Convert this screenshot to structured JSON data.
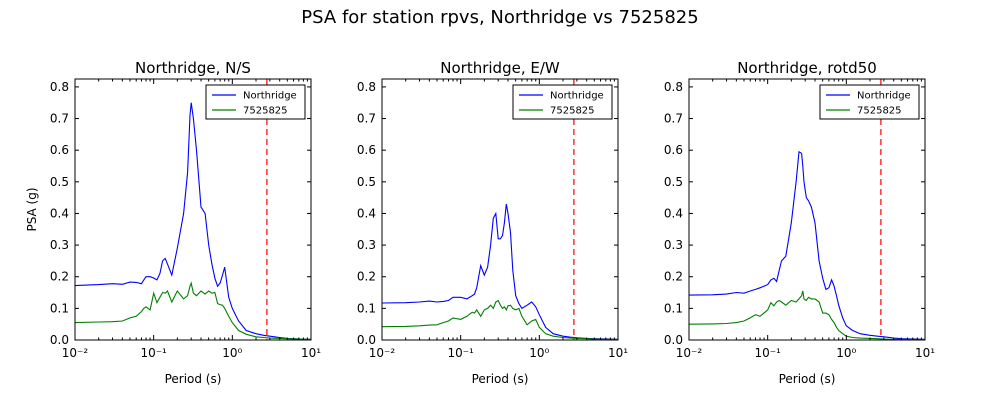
{
  "suptitle": "PSA for station rpvs, Northridge vs 7525825",
  "colors": {
    "series_northridge": "#0000ff",
    "series_7525825": "#008000",
    "marker_line": "#ff0000"
  },
  "chart_data": [
    {
      "type": "line",
      "title": "Northridge, N/S",
      "xlabel": "Period (s)",
      "ylabel": "PSA (g)",
      "xscale": "log",
      "xlim": [
        0.01,
        10
      ],
      "ylim": [
        0,
        0.825
      ],
      "xticks": [
        "10⁻²",
        "10⁻¹",
        "10⁰",
        "10¹"
      ],
      "yticks": [
        "0.0",
        "0.1",
        "0.2",
        "0.3",
        "0.4",
        "0.5",
        "0.6",
        "0.7",
        "0.8"
      ],
      "legend_position": "top-right",
      "marker_x": 2.75,
      "series": [
        {
          "name": "Northridge",
          "color": "#0000ff",
          "x": [
            0.01,
            0.02,
            0.03,
            0.04,
            0.05,
            0.06,
            0.07,
            0.075,
            0.08,
            0.09,
            0.1,
            0.11,
            0.12,
            0.13,
            0.14,
            0.15,
            0.17,
            0.2,
            0.24,
            0.27,
            0.29,
            0.3,
            0.32,
            0.35,
            0.4,
            0.45,
            0.5,
            0.55,
            0.6,
            0.65,
            0.7,
            0.75,
            0.8,
            0.9,
            1.0,
            1.2,
            1.5,
            2.0,
            2.5,
            3.0,
            4.0,
            5.0,
            7.5,
            10.0
          ],
          "y": [
            0.172,
            0.175,
            0.178,
            0.176,
            0.183,
            0.182,
            0.178,
            0.19,
            0.2,
            0.2,
            0.196,
            0.19,
            0.21,
            0.25,
            0.258,
            0.24,
            0.205,
            0.29,
            0.4,
            0.53,
            0.71,
            0.75,
            0.7,
            0.6,
            0.42,
            0.4,
            0.3,
            0.24,
            0.195,
            0.17,
            0.18,
            0.205,
            0.23,
            0.135,
            0.1,
            0.06,
            0.03,
            0.02,
            0.015,
            0.012,
            0.008,
            0.005,
            0.003,
            0.002
          ]
        },
        {
          "name": "7525825",
          "color": "#008000",
          "x": [
            0.01,
            0.02,
            0.03,
            0.04,
            0.05,
            0.06,
            0.07,
            0.075,
            0.08,
            0.09,
            0.1,
            0.11,
            0.12,
            0.13,
            0.14,
            0.15,
            0.17,
            0.2,
            0.24,
            0.27,
            0.29,
            0.3,
            0.32,
            0.35,
            0.4,
            0.45,
            0.5,
            0.55,
            0.6,
            0.65,
            0.7,
            0.75,
            0.8,
            0.9,
            1.0,
            1.2,
            1.5,
            2.0,
            2.5,
            3.0,
            4.0,
            5.0,
            7.5,
            10.0
          ],
          "y": [
            0.055,
            0.057,
            0.058,
            0.06,
            0.07,
            0.075,
            0.09,
            0.1,
            0.105,
            0.095,
            0.148,
            0.118,
            0.135,
            0.15,
            0.148,
            0.155,
            0.12,
            0.155,
            0.13,
            0.14,
            0.17,
            0.18,
            0.148,
            0.14,
            0.155,
            0.145,
            0.155,
            0.148,
            0.15,
            0.115,
            0.112,
            0.11,
            0.1,
            0.075,
            0.055,
            0.03,
            0.018,
            0.01,
            0.008,
            0.006,
            0.005,
            0.004,
            0.003,
            0.002
          ]
        }
      ]
    },
    {
      "type": "line",
      "title": "Northridge, E/W",
      "xlabel": "Period (s)",
      "ylabel": "",
      "xscale": "log",
      "xlim": [
        0.01,
        10
      ],
      "ylim": [
        0,
        0.825
      ],
      "xticks": [
        "10⁻²",
        "10⁻¹",
        "10⁰",
        "10¹"
      ],
      "yticks": [
        "0.0",
        "0.1",
        "0.2",
        "0.3",
        "0.4",
        "0.5",
        "0.6",
        "0.7",
        "0.8"
      ],
      "legend_position": "top-right",
      "marker_x": 2.75,
      "series": [
        {
          "name": "Northridge",
          "color": "#0000ff",
          "x": [
            0.01,
            0.02,
            0.03,
            0.04,
            0.05,
            0.06,
            0.07,
            0.08,
            0.1,
            0.12,
            0.14,
            0.15,
            0.16,
            0.18,
            0.2,
            0.22,
            0.24,
            0.26,
            0.28,
            0.3,
            0.32,
            0.34,
            0.36,
            0.38,
            0.4,
            0.43,
            0.46,
            0.5,
            0.55,
            0.6,
            0.7,
            0.8,
            0.9,
            1.0,
            1.2,
            1.5,
            2.0,
            2.5,
            3.0,
            4.0,
            5.0,
            7.5,
            10.0
          ],
          "y": [
            0.117,
            0.118,
            0.12,
            0.123,
            0.12,
            0.122,
            0.125,
            0.135,
            0.135,
            0.13,
            0.14,
            0.145,
            0.165,
            0.235,
            0.205,
            0.23,
            0.3,
            0.385,
            0.4,
            0.32,
            0.32,
            0.33,
            0.37,
            0.43,
            0.4,
            0.34,
            0.22,
            0.14,
            0.115,
            0.1,
            0.11,
            0.12,
            0.105,
            0.08,
            0.04,
            0.02,
            0.012,
            0.009,
            0.007,
            0.005,
            0.004,
            0.003,
            0.002
          ]
        },
        {
          "name": "7525825",
          "color": "#008000",
          "x": [
            0.01,
            0.02,
            0.03,
            0.04,
            0.05,
            0.06,
            0.07,
            0.08,
            0.1,
            0.12,
            0.14,
            0.15,
            0.16,
            0.18,
            0.2,
            0.22,
            0.24,
            0.26,
            0.28,
            0.3,
            0.32,
            0.34,
            0.36,
            0.38,
            0.4,
            0.43,
            0.46,
            0.5,
            0.55,
            0.6,
            0.7,
            0.8,
            0.9,
            1.0,
            1.2,
            1.5,
            2.0,
            2.5,
            3.0,
            4.0,
            5.0,
            7.5,
            10.0
          ],
          "y": [
            0.042,
            0.043,
            0.045,
            0.047,
            0.048,
            0.055,
            0.06,
            0.07,
            0.065,
            0.075,
            0.088,
            0.085,
            0.095,
            0.075,
            0.095,
            0.1,
            0.11,
            0.1,
            0.12,
            0.125,
            0.11,
            0.1,
            0.105,
            0.095,
            0.108,
            0.11,
            0.1,
            0.095,
            0.1,
            0.075,
            0.048,
            0.06,
            0.065,
            0.04,
            0.02,
            0.012,
            0.008,
            0.006,
            0.005,
            0.004,
            0.003,
            0.002,
            0.002
          ]
        }
      ]
    },
    {
      "type": "line",
      "title": "Northridge, rotd50",
      "xlabel": "Period (s)",
      "ylabel": "",
      "xscale": "log",
      "xlim": [
        0.01,
        10
      ],
      "ylim": [
        0,
        0.825
      ],
      "xticks": [
        "10⁻²",
        "10⁻¹",
        "10⁰",
        "10¹"
      ],
      "yticks": [
        "0.0",
        "0.1",
        "0.2",
        "0.3",
        "0.4",
        "0.5",
        "0.6",
        "0.7",
        "0.8"
      ],
      "legend_position": "top-right",
      "marker_x": 2.75,
      "series": [
        {
          "name": "Northridge",
          "color": "#0000ff",
          "x": [
            0.01,
            0.02,
            0.03,
            0.04,
            0.05,
            0.06,
            0.07,
            0.08,
            0.1,
            0.11,
            0.12,
            0.13,
            0.14,
            0.15,
            0.17,
            0.2,
            0.23,
            0.25,
            0.27,
            0.28,
            0.29,
            0.31,
            0.33,
            0.36,
            0.4,
            0.45,
            0.5,
            0.55,
            0.6,
            0.65,
            0.7,
            0.75,
            0.8,
            0.9,
            1.0,
            1.2,
            1.5,
            2.0,
            2.5,
            3.0,
            4.0,
            5.0,
            7.5,
            10.0
          ],
          "y": [
            0.142,
            0.143,
            0.145,
            0.15,
            0.148,
            0.155,
            0.16,
            0.165,
            0.175,
            0.19,
            0.195,
            0.185,
            0.22,
            0.25,
            0.265,
            0.37,
            0.5,
            0.595,
            0.59,
            0.55,
            0.5,
            0.45,
            0.44,
            0.42,
            0.37,
            0.25,
            0.195,
            0.16,
            0.165,
            0.19,
            0.17,
            0.14,
            0.11,
            0.07,
            0.045,
            0.03,
            0.02,
            0.015,
            0.012,
            0.01,
            0.006,
            0.004,
            0.003,
            0.002
          ]
        },
        {
          "name": "7525825",
          "color": "#008000",
          "x": [
            0.01,
            0.02,
            0.03,
            0.04,
            0.05,
            0.06,
            0.07,
            0.08,
            0.1,
            0.11,
            0.12,
            0.13,
            0.14,
            0.15,
            0.17,
            0.2,
            0.23,
            0.25,
            0.27,
            0.28,
            0.29,
            0.31,
            0.33,
            0.36,
            0.4,
            0.45,
            0.5,
            0.55,
            0.6,
            0.65,
            0.7,
            0.75,
            0.8,
            0.9,
            1.0,
            1.2,
            1.5,
            2.0,
            2.5,
            3.0,
            4.0,
            5.0,
            7.5,
            10.0
          ],
          "y": [
            0.05,
            0.051,
            0.052,
            0.055,
            0.06,
            0.07,
            0.08,
            0.075,
            0.095,
            0.118,
            0.108,
            0.12,
            0.125,
            0.12,
            0.11,
            0.125,
            0.12,
            0.13,
            0.14,
            0.155,
            0.13,
            0.125,
            0.135,
            0.13,
            0.13,
            0.12,
            0.085,
            0.085,
            0.08,
            0.065,
            0.055,
            0.04,
            0.03,
            0.02,
            0.012,
            0.008,
            0.006,
            0.005,
            0.004,
            0.003,
            0.002,
            0.002,
            0.002,
            0.002
          ]
        }
      ]
    }
  ]
}
